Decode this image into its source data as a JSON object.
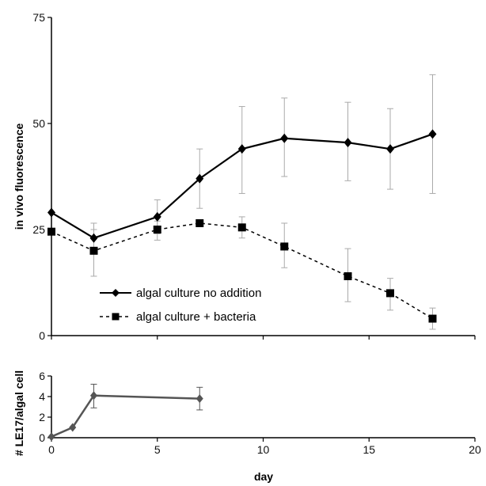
{
  "chart_data": [
    {
      "type": "line",
      "title": "",
      "xlabel": "",
      "ylabel": "in vivo fluorescence",
      "xlim": [
        0,
        20
      ],
      "ylim": [
        0,
        75
      ],
      "yticks": [
        "0",
        "25",
        "50",
        "75"
      ],
      "grid": false,
      "legend_position": "bottom-left",
      "series": [
        {
          "name": "algal culture no addition",
          "line_style": "solid",
          "marker": "diamond",
          "color": "#000000",
          "x": [
            0,
            2,
            5,
            7,
            9,
            11,
            14,
            16,
            18
          ],
          "y": [
            29,
            23,
            28,
            37,
            44,
            46.5,
            45.5,
            44,
            47.5
          ],
          "err_low": [
            29,
            14,
            24,
            30,
            33.5,
            37.5,
            36.5,
            34.5,
            33.5
          ],
          "err_high": [
            29,
            26.5,
            32,
            44,
            54,
            56,
            55,
            53.5,
            61.5
          ]
        },
        {
          "name": "algal culture + bacteria",
          "line_style": "dashed",
          "marker": "square",
          "color": "#000000",
          "x": [
            0,
            2,
            5,
            7,
            9,
            11,
            14,
            16,
            18
          ],
          "y": [
            24.5,
            20,
            25,
            26.5,
            25.5,
            21,
            14,
            10,
            4
          ],
          "err_low": [
            24.5,
            20,
            22.5,
            26.5,
            23,
            16,
            8,
            6,
            1.5
          ],
          "err_high": [
            24.5,
            25,
            27,
            26.5,
            28,
            26.5,
            20.5,
            13.5,
            6.5
          ]
        }
      ]
    },
    {
      "type": "line",
      "title": "",
      "xlabel": "day",
      "ylabel": "# LE17/algal cell",
      "xlim": [
        0,
        20
      ],
      "ylim": [
        0,
        6
      ],
      "xticks": [
        "0",
        "5",
        "10",
        "15",
        "20"
      ],
      "yticks": [
        "0",
        "2",
        "4",
        "6"
      ],
      "grid": false,
      "series": [
        {
          "name": "",
          "line_style": "solid",
          "marker": "diamond",
          "color": "#555555",
          "x": [
            0,
            1,
            2,
            7
          ],
          "y": [
            0.1,
            1,
            4.1,
            3.8
          ],
          "err_low": [
            0.1,
            1,
            2.9,
            2.7
          ],
          "err_high": [
            0.1,
            1,
            5.2,
            4.9
          ]
        }
      ]
    }
  ]
}
